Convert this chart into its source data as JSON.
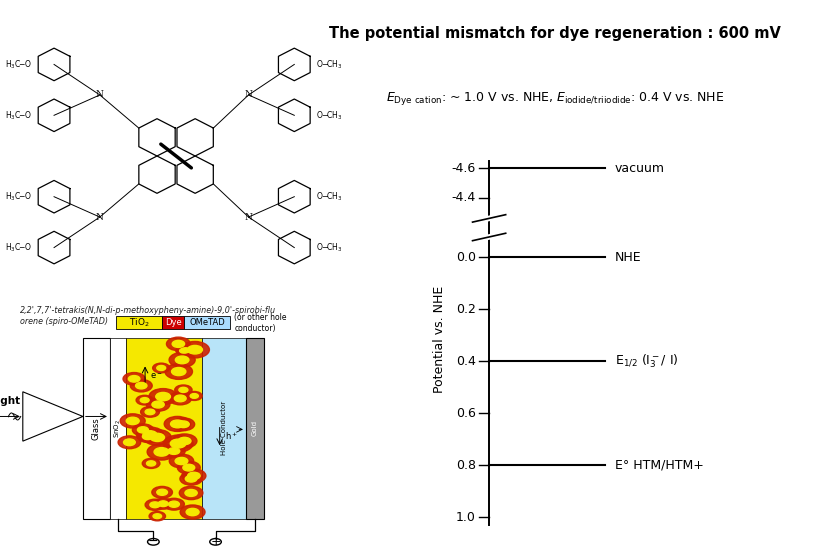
{
  "title1": "The potential mismatch for dye regeneration : 600 mV",
  "title2": "E$_{\\mathrm{Dye\\ cation}}$: ~ 1.0 V vs. NHE, E$_{\\mathrm{iodide/triiodide}}$: 0.4 V vs. NHE",
  "chem_caption": "2,2',7,7'-tetrakis(N,N-di-p-methoxypheny-amine)-9,0'-spirobi-flu\norene (spiro-OMeTAD)",
  "ylabel": "Potential vs. NHE",
  "tick_positions": {
    "-4.6": 0.96,
    "-4.4": 0.88,
    "0.0": 0.72,
    "0.2": 0.58,
    "0.4": 0.44,
    "0.6": 0.3,
    "0.8": 0.16,
    "1.0": 0.02
  },
  "energy_levels": [
    {
      "val_key": "-4.6",
      "label": "vacuum"
    },
    {
      "val_key": "0.0",
      "label": "NHE"
    },
    {
      "val_key": "0.4",
      "label": "E$_{1/2}$ (I$_3^-$/ I)"
    },
    {
      "val_key": "0.8",
      "label": "E° HTM/HTM+"
    }
  ],
  "bg_color": "#ffffff",
  "cell_xlim": [
    0,
    10
  ],
  "cell_ylim": [
    0,
    10
  ]
}
